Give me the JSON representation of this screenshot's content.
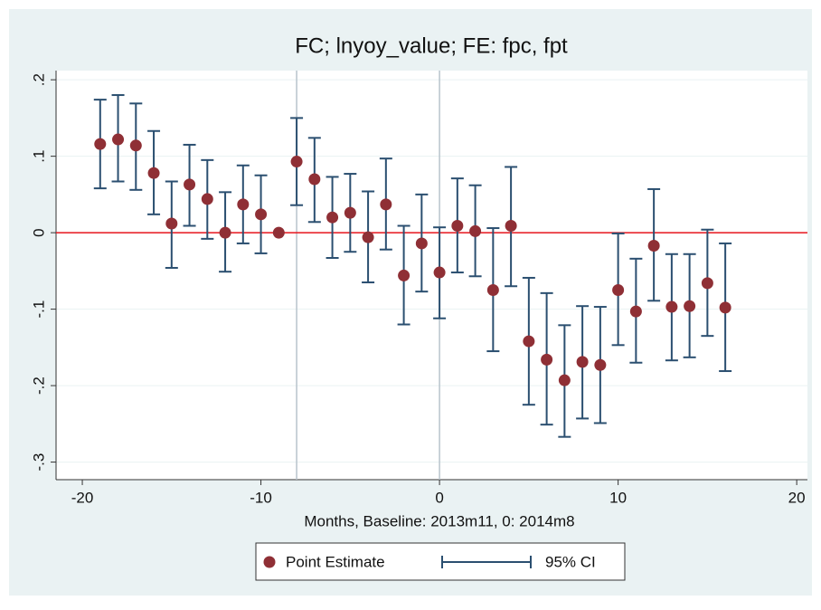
{
  "chart_data": {
    "type": "coefplot",
    "title": "FC; lnyoy_value; FE: fpc, fpt",
    "x_label": "Months, Baseline: 2013m11, 0: 2014m8",
    "x": [
      -19,
      -18,
      -17,
      -16,
      -15,
      -14,
      -13,
      -12,
      -11,
      -10,
      -9,
      -8,
      -7,
      -6,
      -5,
      -4,
      -3,
      -2,
      -1,
      0,
      1,
      2,
      3,
      4,
      5,
      6,
      7,
      8,
      9,
      10,
      11,
      12,
      13,
      14,
      15,
      16
    ],
    "series": [
      {
        "name": "Point Estimate",
        "color": "#8f2f35",
        "values": [
          0.116,
          0.122,
          0.114,
          0.078,
          0.012,
          0.063,
          0.044,
          0,
          0.037,
          0.024,
          0,
          0.093,
          0.07,
          0.02,
          0.026,
          -0.006,
          0.037,
          -0.056,
          -0.014,
          -0.052,
          0.009,
          0.002,
          -0.075,
          0.009,
          -0.142,
          -0.166,
          -0.193,
          -0.169,
          -0.173,
          -0.075,
          -0.103,
          -0.017,
          -0.097,
          -0.096,
          -0.066,
          -0.098
        ]
      }
    ],
    "ci": {
      "name": "95% CI",
      "color": "#2b4f70",
      "low": [
        0.058,
        0.067,
        0.056,
        0.024,
        -0.046,
        0.009,
        -0.008,
        -0.051,
        -0.014,
        -0.027,
        null,
        0.036,
        0.014,
        -0.033,
        -0.025,
        -0.065,
        -0.022,
        -0.12,
        -0.077,
        -0.112,
        -0.052,
        -0.057,
        -0.155,
        -0.07,
        -0.225,
        -0.251,
        -0.267,
        -0.243,
        -0.249,
        -0.147,
        -0.17,
        -0.089,
        -0.167,
        -0.163,
        -0.135,
        -0.181
      ],
      "high": [
        0.174,
        0.18,
        0.169,
        0.133,
        0.067,
        0.115,
        0.095,
        0.053,
        0.088,
        0.075,
        null,
        0.15,
        0.124,
        0.073,
        0.077,
        0.054,
        0.097,
        0.009,
        0.05,
        0.007,
        0.071,
        0.062,
        0.006,
        0.086,
        -0.059,
        -0.079,
        -0.121,
        -0.096,
        -0.097,
        -0.001,
        -0.034,
        0.057,
        -0.028,
        -0.028,
        0.004,
        -0.014
      ]
    },
    "xlim": [
      -21.47,
      20.6
    ],
    "xticks": [
      -20,
      -10,
      0,
      10,
      20
    ],
    "ylim": [
      -0.323,
      0.212
    ],
    "yticks": [
      {
        "value": 0.2,
        "label": ".2"
      },
      {
        "value": 0.1,
        "label": ".1"
      },
      0,
      {
        "value": -0.1,
        "label": "-.1"
      },
      {
        "value": -0.2,
        "label": "-.2"
      },
      {
        "value": -0.3,
        "label": "-.3"
      }
    ],
    "xlines": [
      -8,
      0
    ],
    "xline_color": "#b8c4cc",
    "yline": 0,
    "yline_color": "#e8141c"
  }
}
